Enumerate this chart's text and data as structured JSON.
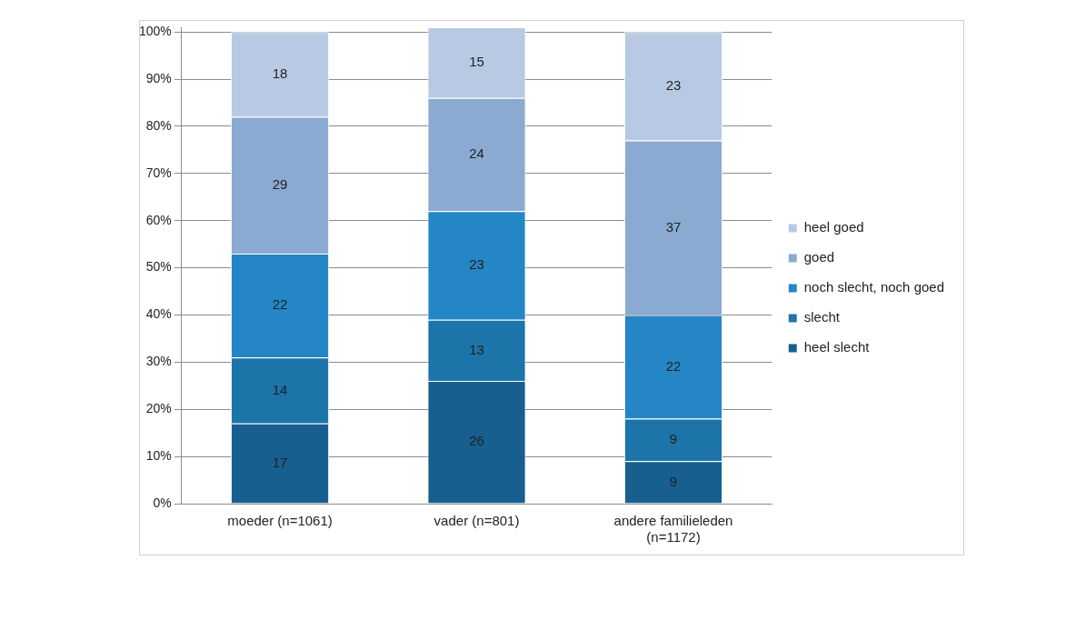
{
  "chart_data": {
    "type": "bar",
    "stacked": true,
    "categories": [
      "moeder (n=1061)",
      "vader (n=801)",
      "andere familieleden (n=1172)"
    ],
    "series": [
      {
        "name": "heel slecht",
        "color": "#175f8e",
        "values": [
          17,
          26,
          9
        ]
      },
      {
        "name": "slecht",
        "color": "#1d74a9",
        "values": [
          14,
          13,
          9
        ]
      },
      {
        "name": "noch slecht, noch goed",
        "color": "#2586c5",
        "values": [
          22,
          23,
          22
        ]
      },
      {
        "name": "goed",
        "color": "#8aaad2",
        "values": [
          29,
          24,
          37
        ]
      },
      {
        "name": "heel goed",
        "color": "#b8cae3",
        "values": [
          18,
          15,
          23
        ]
      }
    ],
    "ylim": [
      0,
      101
    ],
    "yticks": [
      {
        "value": 0,
        "label": "0%"
      },
      {
        "value": 10,
        "label": "10%"
      },
      {
        "value": 20,
        "label": "20%"
      },
      {
        "value": 30,
        "label": "30%"
      },
      {
        "value": 40,
        "label": "40%"
      },
      {
        "value": 50,
        "label": "50%"
      },
      {
        "value": 60,
        "label": "60%"
      },
      {
        "value": 70,
        "label": "70%"
      },
      {
        "value": 80,
        "label": "80%"
      },
      {
        "value": 90,
        "label": "90%"
      },
      {
        "value": 100,
        "label": "100%"
      }
    ],
    "grid": "y",
    "legend": "right",
    "data_labels": true
  }
}
